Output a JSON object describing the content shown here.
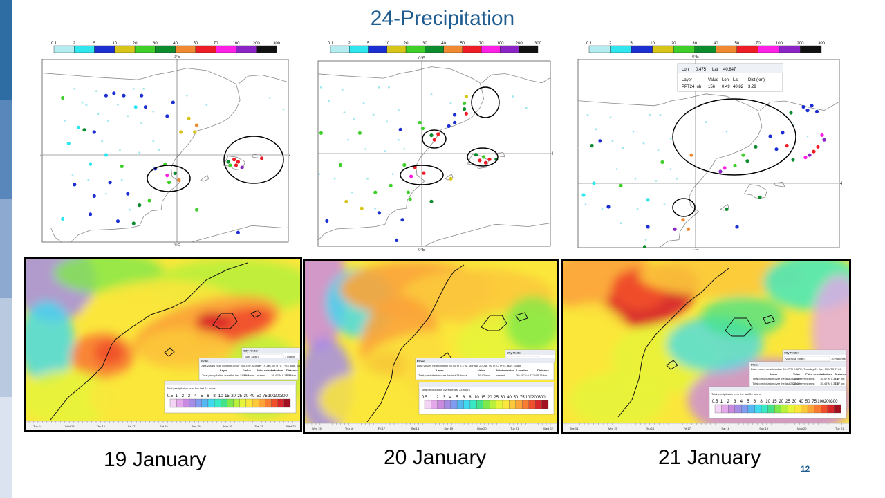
{
  "slide": {
    "title": "24-Precipitation",
    "page_number": "12",
    "stripe_colors": [
      "#2e6da4",
      "#5a87bb",
      "#8ea9cf",
      "#b9c9e0",
      "#dae3ef"
    ]
  },
  "legend": {
    "labels": [
      "0.1",
      "2",
      "5",
      "10",
      "20",
      "30",
      "40",
      "50",
      "70",
      "100",
      "200",
      "300"
    ],
    "colors": [
      "#b4ecf0",
      "#2fe6ee",
      "#1c2fd2",
      "#d8c51a",
      "#3fcf2a",
      "#0d8c2e",
      "#ef8a32",
      "#ee1c24",
      "#ff20e6",
      "#8a24c4",
      "#111111"
    ]
  },
  "obs_maps": [
    {
      "meridian_label": "0°E",
      "parallel_label": "40°N",
      "circles_count": 2,
      "points": [
        {
          "color": "blue",
          "lon": -3.6,
          "lat": 42.6
        },
        {
          "color": "blue",
          "lon": -3.2,
          "lat": 42.7
        },
        {
          "color": "blue",
          "lon": -2.7,
          "lat": 42.6
        },
        {
          "color": "green",
          "lon": -5.8,
          "lat": 42.5
        },
        {
          "color": "blue",
          "lon": -1.8,
          "lat": 42.6
        },
        {
          "color": "pale",
          "lon": -4.6,
          "lat": 42.2
        },
        {
          "color": "cyan",
          "lon": -2.1,
          "lat": 42.1
        },
        {
          "color": "blue",
          "lon": -1.6,
          "lat": 42.1
        },
        {
          "color": "blue",
          "lon": -0.2,
          "lat": 42.3
        },
        {
          "color": "blue",
          "lon": -0.5,
          "lat": 41.7
        },
        {
          "color": "yellow",
          "lon": 0.6,
          "lat": 41.6
        },
        {
          "color": "orange",
          "lon": 1.0,
          "lat": 41.3
        },
        {
          "color": "yellow",
          "lon": 0.2,
          "lat": 41.0
        },
        {
          "color": "yellow",
          "lon": 0.9,
          "lat": 41.0
        },
        {
          "color": "cyan",
          "lon": -5.0,
          "lat": 41.2
        },
        {
          "color": "darkgreen",
          "lon": -4.7,
          "lat": 41.1
        },
        {
          "color": "blue",
          "lon": -4.2,
          "lat": 41.0
        },
        {
          "color": "green",
          "lon": -2.8,
          "lat": 39.5
        },
        {
          "color": "blue",
          "lon": -1.1,
          "lat": 39.4
        },
        {
          "color": "green",
          "lon": -0.6,
          "lat": 39.6
        },
        {
          "color": "magenta",
          "lon": -0.5,
          "lat": 39.1
        },
        {
          "color": "darkgreen",
          "lon": -0.1,
          "lat": 39.2
        },
        {
          "color": "orange",
          "lon": 0.1,
          "lat": 38.9
        },
        {
          "color": "green",
          "lon": -0.4,
          "lat": 38.8
        },
        {
          "color": "blue",
          "lon": -3.4,
          "lat": 38.8
        },
        {
          "color": "blue",
          "lon": -4.2,
          "lat": 38.2
        },
        {
          "color": "blue",
          "lon": -2.5,
          "lat": 38.3
        },
        {
          "color": "green",
          "lon": -1.4,
          "lat": 38.0
        },
        {
          "color": "darkgreen",
          "lon": -1.9,
          "lat": 37.8
        },
        {
          "color": "green",
          "lon": 1.0,
          "lat": 37.6
        },
        {
          "color": "red",
          "lon": 2.9,
          "lat": 39.8
        },
        {
          "color": "red",
          "lon": 3.1,
          "lat": 39.7
        },
        {
          "color": "darkgreen",
          "lon": 2.6,
          "lat": 39.7
        },
        {
          "color": "red",
          "lon": 3.0,
          "lat": 39.55
        },
        {
          "color": "purple",
          "lon": 3.3,
          "lat": 39.45
        },
        {
          "color": "green",
          "lon": 2.7,
          "lat": 39.55
        },
        {
          "color": "red",
          "lon": 4.3,
          "lat": 39.85
        },
        {
          "color": "blue",
          "lon": 3.1,
          "lat": 36.6
        },
        {
          "color": "cyan",
          "lon": -5.5,
          "lat": 40.5
        },
        {
          "color": "cyan",
          "lon": -4.4,
          "lat": 39.6
        },
        {
          "color": "cyan",
          "lon": -3.6,
          "lat": 40.0
        },
        {
          "color": "blue",
          "lon": -5.2,
          "lat": 38.7
        },
        {
          "color": "cyan",
          "lon": -5.8,
          "lat": 37.2
        },
        {
          "color": "blue",
          "lon": -4.4,
          "lat": 37.4
        },
        {
          "color": "blue",
          "lon": -3.0,
          "lat": 37.1
        },
        {
          "color": "darkgreen",
          "lon": -2.2,
          "lat": 37.0
        }
      ]
    },
    {
      "meridian_label": "0°E",
      "parallel_label": "40°N",
      "circles_count": 4,
      "points": [
        {
          "color": "yellow",
          "lon": 2.3,
          "lat": 42.5
        },
        {
          "color": "green",
          "lon": 2.2,
          "lat": 42.2
        },
        {
          "color": "darkgreen",
          "lon": 2.2,
          "lat": 41.95
        },
        {
          "color": "red",
          "lon": 2.3,
          "lat": 41.75
        },
        {
          "color": "blue",
          "lon": 1.7,
          "lat": 41.35
        },
        {
          "color": "blue",
          "lon": 1.4,
          "lat": 41.2
        },
        {
          "color": "red",
          "lon": 0.85,
          "lat": 40.85
        },
        {
          "color": "red",
          "lon": 0.65,
          "lat": 40.6
        },
        {
          "color": "darkgreen",
          "lon": 0.5,
          "lat": 40.8
        },
        {
          "color": "green",
          "lon": 0.05,
          "lat": 41.1
        },
        {
          "color": "green",
          "lon": -0.1,
          "lat": 41.35
        },
        {
          "color": "blue",
          "lon": -1.1,
          "lat": 41.05
        },
        {
          "color": "green",
          "lon": -3.2,
          "lat": 40.9
        },
        {
          "color": "darkgreen",
          "lon": 2.8,
          "lat": 39.95
        },
        {
          "color": "red",
          "lon": 3.0,
          "lat": 39.7
        },
        {
          "color": "green",
          "lon": 3.2,
          "lat": 39.85
        },
        {
          "color": "red",
          "lon": 3.3,
          "lat": 39.6
        },
        {
          "color": "red",
          "lon": 3.5,
          "lat": 39.75
        },
        {
          "color": "green",
          "lon": -4.2,
          "lat": 39.5
        },
        {
          "color": "green",
          "lon": -0.9,
          "lat": 39.5
        },
        {
          "color": "red",
          "lon": -0.35,
          "lat": 39.4
        },
        {
          "color": "red",
          "lon": 0.1,
          "lat": 39.15
        },
        {
          "color": "magenta",
          "lon": -0.55,
          "lat": 39.0
        },
        {
          "color": "yellow",
          "lon": 1.5,
          "lat": 38.9
        },
        {
          "color": "green",
          "lon": -1.6,
          "lat": 38.6
        },
        {
          "color": "green",
          "lon": -2.4,
          "lat": 38.3
        },
        {
          "color": "green",
          "lon": -0.7,
          "lat": 38.3
        },
        {
          "color": "yellow",
          "lon": -3.9,
          "lat": 37.9
        },
        {
          "color": "yellow",
          "lon": -3.1,
          "lat": 37.6
        },
        {
          "color": "blue",
          "lon": -2.2,
          "lat": 37.4
        },
        {
          "color": "blue",
          "lon": -4.9,
          "lat": 37.05
        },
        {
          "color": "blue",
          "lon": -1.3,
          "lat": 36.2
        },
        {
          "color": "green",
          "lon": -0.6,
          "lat": 38.0
        },
        {
          "color": "darkgreen",
          "lon": 0.5,
          "lat": 37.9
        },
        {
          "color": "blue",
          "lon": -1.0,
          "lat": 37.1
        },
        {
          "color": "cyan",
          "lon": -5.7,
          "lat": 39.8
        },
        {
          "color": "cyan",
          "lon": -6.5,
          "lat": 37.1
        },
        {
          "color": "green",
          "lon": -5.2,
          "lat": 40.9
        },
        {
          "color": "blue",
          "lon": 1.7,
          "lat": 41.7
        },
        {
          "color": "darkgreen",
          "lon": 3.85,
          "lat": 39.75
        }
      ]
    },
    {
      "meridian_label": "0°E",
      "parallel_label": "40°N",
      "circles_count": 2,
      "probe": {
        "lon_label": "Lon",
        "lon_value": "0.475",
        "lat_label": "Lat",
        "lat_value": "40.847",
        "headers": [
          "Layer",
          "Value",
          "Lon",
          "Lat",
          "Dist (km)"
        ],
        "row": [
          "PPT24_ob",
          "156",
          "0.49",
          "40.82",
          "3.29"
        ]
      },
      "points": [
        {
          "color": "magenta",
          "lon": 6.1,
          "lat": 42.05
        },
        {
          "color": "purple",
          "lon": 6.2,
          "lat": 41.85
        },
        {
          "color": "red",
          "lon": 5.9,
          "lat": 41.55
        },
        {
          "color": "red",
          "lon": 5.7,
          "lat": 41.35
        },
        {
          "color": "purple",
          "lon": 5.5,
          "lat": 41.2
        },
        {
          "color": "magenta",
          "lon": 5.3,
          "lat": 41.1
        },
        {
          "color": "darkgreen",
          "lon": 4.7,
          "lat": 41.0
        },
        {
          "color": "red",
          "lon": 4.4,
          "lat": 41.6
        },
        {
          "color": "blue",
          "lon": 3.9,
          "lat": 41.45
        },
        {
          "color": "blue",
          "lon": 4.2,
          "lat": 42.15
        },
        {
          "color": "blue",
          "lon": 3.6,
          "lat": 42.0
        },
        {
          "color": "darkgreen",
          "lon": 2.9,
          "lat": 41.55
        },
        {
          "color": "green",
          "lon": 2.3,
          "lat": 41.2
        },
        {
          "color": "darkgreen",
          "lon": 2.5,
          "lat": 40.95
        },
        {
          "color": "magenta",
          "lon": 1.4,
          "lat": 40.65
        },
        {
          "color": "purple",
          "lon": 1.2,
          "lat": 40.5
        },
        {
          "color": "green",
          "lon": 1.9,
          "lat": 40.75
        },
        {
          "color": "orange",
          "lon": -0.2,
          "lat": 41.2
        },
        {
          "color": "green",
          "lon": -1.6,
          "lat": 40.9
        },
        {
          "color": "cyan",
          "lon": -2.3,
          "lat": 39.3
        },
        {
          "color": "green",
          "lon": -3.6,
          "lat": 39.9
        },
        {
          "color": "cyan",
          "lon": -4.9,
          "lat": 40.0
        },
        {
          "color": "blue",
          "lon": -4.6,
          "lat": 41.8
        },
        {
          "color": "darkgreen",
          "lon": -5.0,
          "lat": 41.6
        },
        {
          "color": "purple",
          "lon": -1.0,
          "lat": 38.05
        },
        {
          "color": "orange",
          "lon": -0.6,
          "lat": 38.45
        },
        {
          "color": "orange",
          "lon": -0.35,
          "lat": 38.05
        },
        {
          "color": "blue",
          "lon": -2.3,
          "lat": 38.15
        },
        {
          "color": "darkgreen",
          "lon": -2.45,
          "lat": 37.3
        },
        {
          "color": "green",
          "lon": -2.0,
          "lat": 37.0
        },
        {
          "color": "darkgreen",
          "lon": -1.5,
          "lat": 36.7
        },
        {
          "color": "blue",
          "lon": 2.0,
          "lat": 38.15
        },
        {
          "color": "darkgreen",
          "lon": 1.5,
          "lat": 38.9
        },
        {
          "color": "darkgreen",
          "lon": 3.1,
          "lat": 39.4
        },
        {
          "color": "blue",
          "lon": 5.2,
          "lat": 43.25
        },
        {
          "color": "blue",
          "lon": 5.4,
          "lat": 43.1
        },
        {
          "color": "blue",
          "lon": 5.6,
          "lat": 43.3
        },
        {
          "color": "blue",
          "lon": 5.85,
          "lat": 43.05
        },
        {
          "color": "darkgreen",
          "lon": 4.6,
          "lat": 43.0
        },
        {
          "color": "cyan",
          "lon": -5.4,
          "lat": 39.5
        },
        {
          "color": "blue",
          "lon": -4.2,
          "lat": 39.0
        },
        {
          "color": "darkgreen",
          "lon": -3.2,
          "lat": 36.85
        }
      ]
    }
  ],
  "model_maps": [
    {
      "city_finder_title": "City Finder",
      "city_finder_value": "Bari, Spain",
      "city_finder_meta": "1 match",
      "probe_title": "Probe",
      "probe_desc": "Data values near location 39.40°N 0.3°W, Sunday 19 Jan, 00 UTC T+24, Bari, Spain",
      "probe_headers": [
        "Layer",
        "Value",
        "Point selected",
        "Location",
        "Distance"
      ],
      "probe_row": [
        "Total precipitation over the last 24 hours",
        "57.4 mm",
        "nearest",
        "39.40°N 0.37°W",
        "5.36 km"
      ],
      "colorbar_title": "Total precipitation over the last 24 hours",
      "colorbar_labels": [
        "0.5",
        "1",
        "2",
        "3",
        "4",
        "5",
        "6",
        "8",
        "10",
        "15",
        "20",
        "25",
        "30",
        "40",
        "50",
        "75",
        "100",
        "200",
        "300"
      ],
      "timeline_labels": [
        "Tue 14",
        "Wed 15",
        "Thu 16",
        "Fri 17",
        "Sat 18",
        "Sun 19",
        "Mon 20",
        "Tue 21",
        "Wed 22"
      ],
      "date_label": "19 January"
    },
    {
      "city_finder_title": "City Finder",
      "city_finder_value": "Bari, Spain",
      "city_finder_meta": "1 match",
      "probe_title": "Probe",
      "probe_desc": "Data values near location 39.40°N 0.3°W, Monday 20 Jan, 00 UTC T+24, Bari, Spain",
      "probe_headers": [
        "Layer",
        "Value",
        "Point selected",
        "Location",
        "Distance"
      ],
      "probe_row": [
        "Total precipitation over the last 24 hours",
        "76.42 mm",
        "nearest",
        "39.40°N 0.37°W",
        "5.36 km"
      ],
      "colorbar_title": "Total precipitation over the last 24 hours",
      "colorbar_labels": [
        "0.5",
        "1",
        "2",
        "3",
        "4",
        "5",
        "6",
        "8",
        "10",
        "15",
        "20",
        "25",
        "30",
        "40",
        "50",
        "75",
        "100",
        "200",
        "300"
      ],
      "timeline_labels": [
        "Wed 15",
        "Thu 16",
        "Fri 17",
        "Sat 18",
        "Sun 19",
        "Mon 20",
        "Tue 21",
        "Wed 22"
      ],
      "date_label": "20 January"
    },
    {
      "city_finder_title": "City Finder",
      "city_finder_value": "Valencia, Spain",
      "city_finder_meta": "10 matches",
      "probe_title": "Probe",
      "probe_desc": "Data values near location 39.47°N 0.38°E, Tuesday 21 Jan, 00 UTC T+24",
      "probe_headers": [
        "Layer",
        "Value",
        "Point selected",
        "Location",
        "Distance"
      ],
      "probe_row": [
        "Total precipitation over the last 24 hours",
        "32.90 mm",
        "nearest",
        "39.47°N 0.37°E",
        "3.67 km"
      ],
      "probe_row2": [
        "Total precipitation over the last 24 hours",
        "22.09 mm",
        "nearest",
        "39.43°N 0.37°E",
        "3.67 km"
      ],
      "colorbar_title": "Total precipitation over the last 24 hours",
      "colorbar_labels": [
        "0.5",
        "1",
        "2",
        "3",
        "4",
        "5",
        "6",
        "8",
        "10",
        "15",
        "20",
        "25",
        "30",
        "40",
        "50",
        "75",
        "100",
        "200",
        "300"
      ],
      "timeline_labels": [
        "Tue 14",
        "Wed 15",
        "Thu 16",
        "Fri 17",
        "Sat 18",
        "Sun 19",
        "Mon 20",
        "Tue 21"
      ],
      "date_label": "21 January"
    }
  ],
  "colorbar_colors": [
    "#f3d4f5",
    "#e3a8ea",
    "#c98ae0",
    "#a58de6",
    "#7f9cf0",
    "#54b7f2",
    "#3fd9f0",
    "#39e8c5",
    "#43e28a",
    "#7fe84a",
    "#b9f03c",
    "#e6f43a",
    "#fbe73b",
    "#fcc93a",
    "#fba43a",
    "#f87c34",
    "#f04f2c",
    "#d8262a",
    "#a01020"
  ],
  "point_colors": {
    "pale": "#b4ecf0",
    "cyan": "#2fe6ee",
    "blue": "#1c2fd2",
    "yellow": "#d8c51a",
    "green": "#3fcf2a",
    "darkgreen": "#0d8c2e",
    "orange": "#ef8a32",
    "red": "#ee1c24",
    "magenta": "#ff20e6",
    "purple": "#8a24c4"
  }
}
